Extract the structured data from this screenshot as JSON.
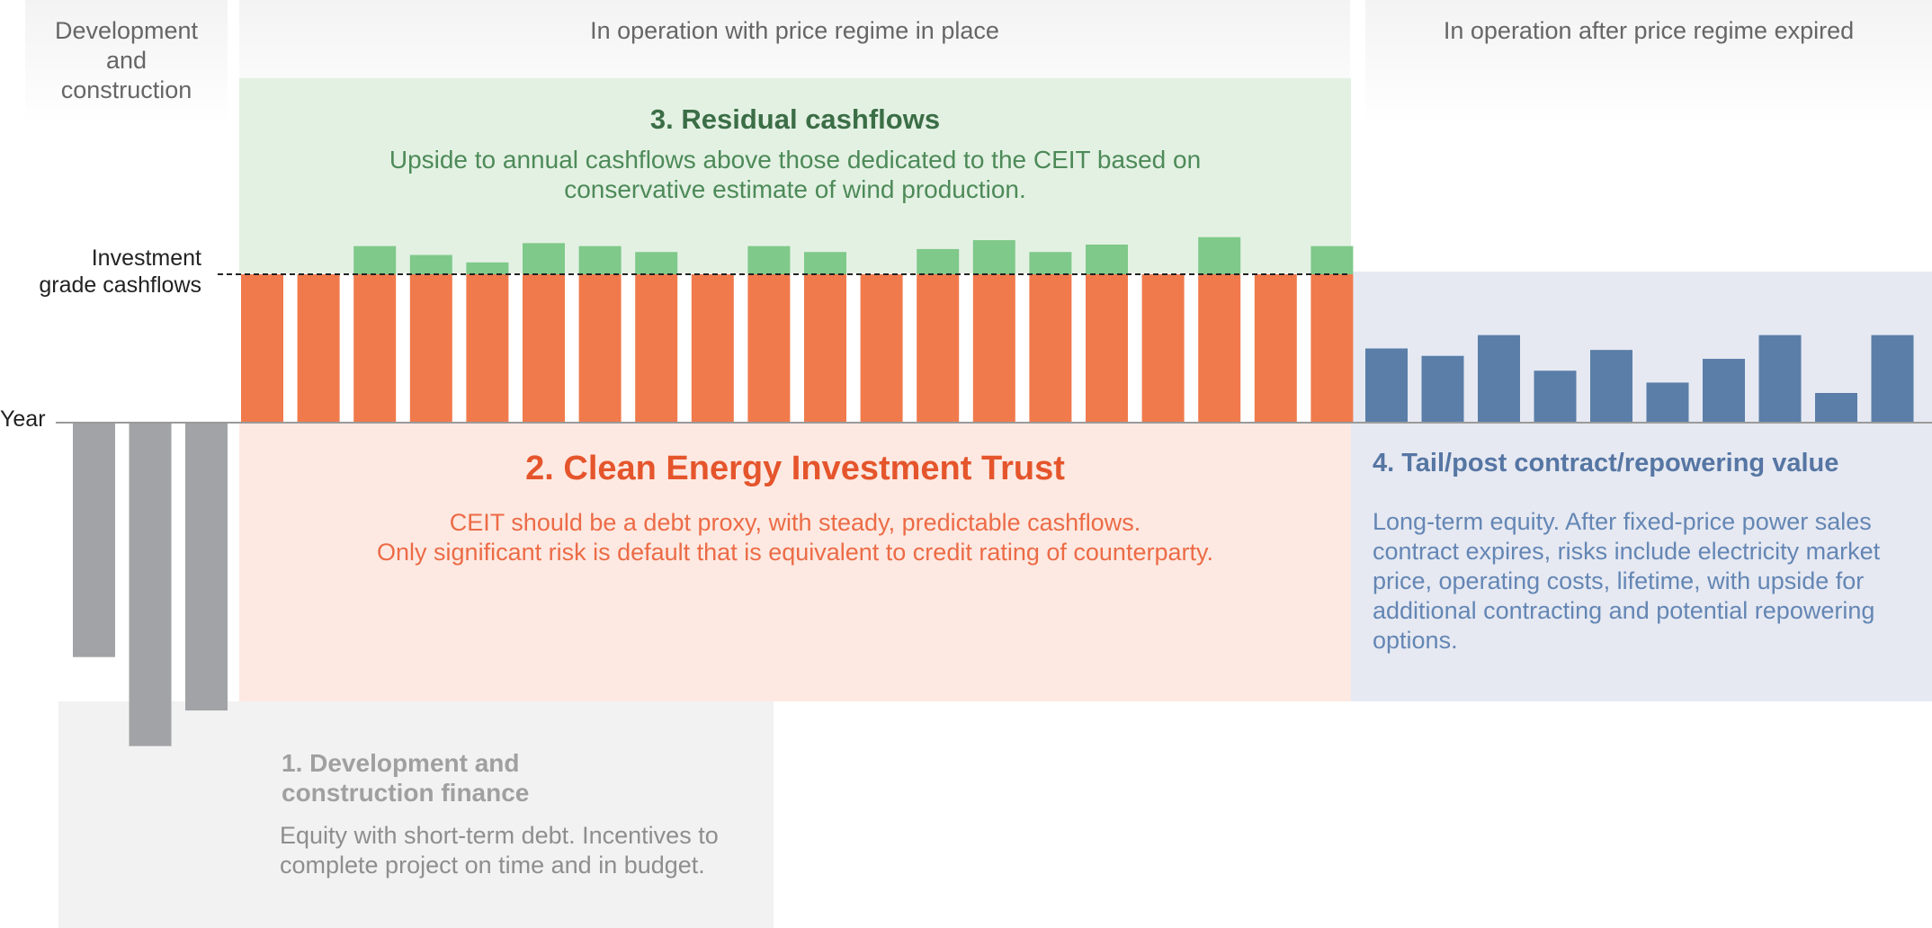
{
  "headers": {
    "development": "Development and construction",
    "in_operation": "In operation with price regime in place",
    "after_expired": "In operation after price regime expired"
  },
  "axis": {
    "year_label": "Year",
    "investment_grade_label": "Investment grade cashflows"
  },
  "boxes": {
    "residual": {
      "title": "3. Residual cashflows",
      "text": "Upside to annual cashflows above those dedicated to the CEIT based on conservative estimate of wind production."
    },
    "ceit": {
      "title": "2. Clean Energy Investment Trust",
      "line1": "CEIT should be a debt proxy, with steady, predictable cashflows.",
      "line2": "Only significant risk is default that is equivalent to credit rating of counterparty."
    },
    "tail": {
      "title": "4. Tail/post contract/repowering value",
      "text": "Long-term equity. After fixed-price power sales contract expires, risks include electricity market price, operating costs, lifetime, with upside for additional contracting and potential repowering options."
    },
    "development": {
      "title": "1. Development and construction finance",
      "text": "Equity with short-term debt. Incentives to complete project on time and in budget."
    }
  },
  "colors": {
    "construction": "#a2a3a6",
    "ceit": "#f07a4c",
    "residual": "#7fc98a",
    "tail": "#5a7ea8",
    "residual_bg": "#e3f1e3",
    "ceit_bg": "#fde9e2",
    "tail_bg": "#e6e9f2",
    "dev_bg": "#f2f2f2"
  },
  "chart_data": {
    "type": "bar",
    "ylabel": "Year",
    "investment_grade_level": 1.0,
    "construction_negative": [
      -1.58,
      -2.18,
      -1.94
    ],
    "operating_years": 20,
    "ceit_base": [
      1.0,
      1.0,
      1.0,
      1.0,
      1.0,
      1.0,
      1.0,
      1.0,
      1.0,
      1.0,
      1.0,
      1.0,
      1.0,
      1.0,
      1.0,
      1.0,
      1.0,
      1.0,
      1.0,
      1.0
    ],
    "residual_upside": [
      0,
      0,
      0.19,
      0.13,
      0.08,
      0.21,
      0.19,
      0.15,
      0,
      0.19,
      0.15,
      0,
      0.17,
      0.23,
      0.15,
      0.2,
      0,
      0.25,
      0,
      0.19
    ],
    "tail_values": [
      0.5,
      0.45,
      0.59,
      0.35,
      0.49,
      0.27,
      0.43,
      0.59,
      0.2,
      0.59
    ]
  }
}
